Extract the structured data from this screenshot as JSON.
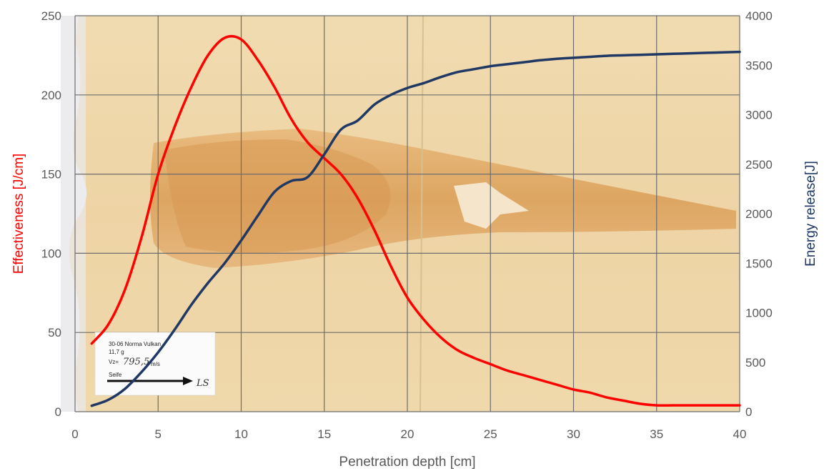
{
  "chart_data": {
    "type": "line",
    "title": "",
    "xlabel": "Penetration depth [cm]",
    "ylabel": "Effectiveness [J/cm]",
    "y2label": "Energy release[J]",
    "xlim": [
      0,
      40
    ],
    "ylim": [
      0,
      250
    ],
    "y2lim": [
      0,
      4000
    ],
    "x_ticks": [
      "0",
      "5",
      "10",
      "15",
      "20",
      "25",
      "30",
      "35",
      "40"
    ],
    "y_ticks": [
      "0",
      "50",
      "100",
      "150",
      "200",
      "250"
    ],
    "y2_ticks": [
      "0",
      "500",
      "1000",
      "1500",
      "2000",
      "2500",
      "3000",
      "3500",
      "4000"
    ],
    "grid": true,
    "background": "photograph of ballistic gelatin block showing wound channel",
    "series": [
      {
        "axis": "left",
        "color": "#ff0000",
        "x": [
          1,
          2,
          3,
          4,
          5,
          6,
          7,
          8,
          9,
          10,
          11,
          12,
          13,
          14,
          15,
          16,
          17,
          18,
          19,
          20,
          21,
          22,
          23,
          24,
          25,
          26,
          27,
          28,
          29,
          30,
          31,
          32,
          33,
          34,
          35,
          36,
          37,
          38,
          39,
          40
        ],
        "values": [
          43,
          55,
          77,
          110,
          150,
          180,
          205,
          225,
          236,
          235,
          222,
          205,
          185,
          170,
          160,
          150,
          135,
          115,
          92,
          72,
          58,
          47,
          39,
          34,
          30,
          26,
          23,
          20,
          17,
          14,
          12,
          9,
          7,
          5,
          4,
          4,
          4,
          4,
          4,
          4
        ]
      },
      {
        "axis": "right",
        "color": "#1f3864",
        "x": [
          1,
          2,
          3,
          4,
          5,
          6,
          7,
          8,
          9,
          10,
          11,
          12,
          13,
          14,
          15,
          16,
          17,
          18,
          19,
          20,
          21,
          22,
          23,
          24,
          25,
          26,
          27,
          28,
          29,
          30,
          31,
          32,
          33,
          34,
          35,
          36,
          37,
          38,
          39,
          40
        ],
        "values": [
          60,
          120,
          230,
          400,
          600,
          830,
          1080,
          1300,
          1500,
          1730,
          1980,
          2220,
          2330,
          2370,
          2600,
          2850,
          2940,
          3100,
          3200,
          3270,
          3320,
          3380,
          3430,
          3460,
          3490,
          3510,
          3530,
          3550,
          3565,
          3575,
          3585,
          3595,
          3600,
          3605,
          3610,
          3615,
          3620,
          3625,
          3630,
          3635
        ]
      }
    ]
  },
  "photo_card": {
    "line1": "30-06 Norma Vulkan",
    "line2": "11,7 g",
    "line3_prefix": "Vz=",
    "line3_value": "795,5",
    "line3_unit": "m/s",
    "line4": "Seife",
    "arrow_label": "LS"
  }
}
